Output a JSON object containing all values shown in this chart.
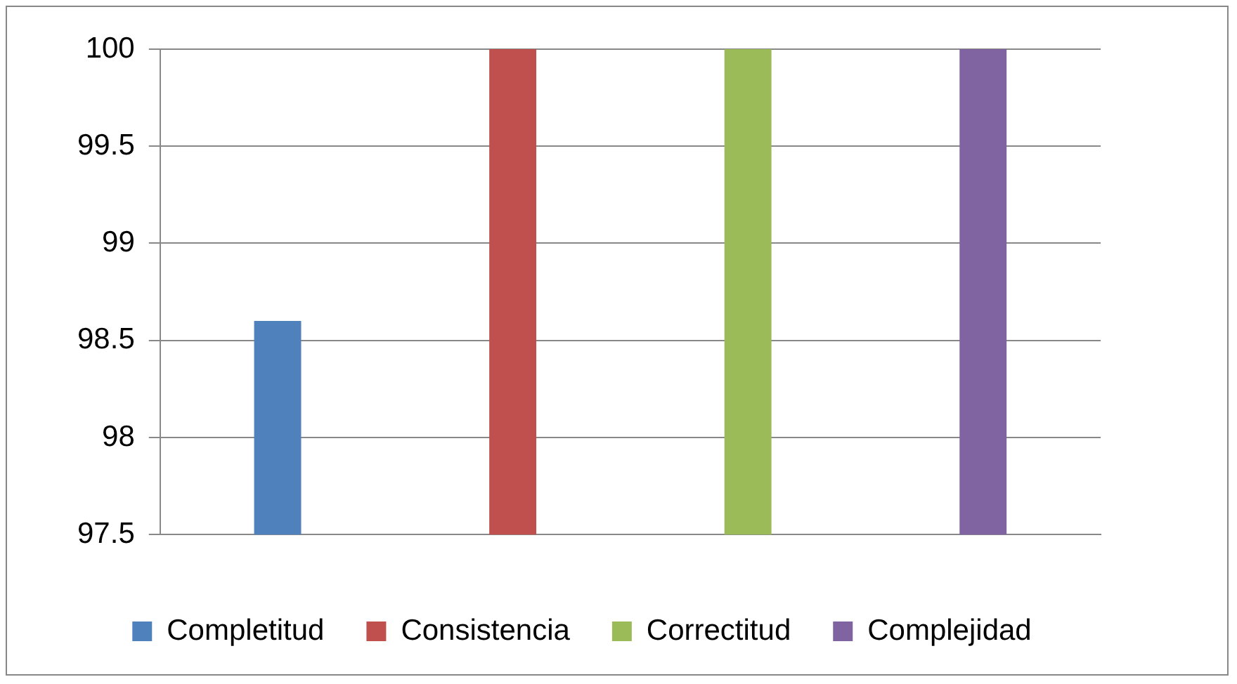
{
  "chart_data": {
    "type": "bar",
    "categories": [
      null
    ],
    "series": [
      {
        "name": "Completitud",
        "color": "#4f81bd",
        "values": [
          98.6
        ]
      },
      {
        "name": "Consistencia",
        "color": "#c0504d",
        "values": [
          100
        ]
      },
      {
        "name": "Correctitud",
        "color": "#9bbb59",
        "values": [
          100
        ]
      },
      {
        "name": "Complejidad",
        "color": "#8064a2",
        "values": [
          100
        ]
      }
    ],
    "ylim": [
      97.5,
      100
    ],
    "yticks": [
      97.5,
      98,
      98.5,
      99,
      99.5,
      100
    ],
    "grid": "y",
    "legend": "bottom"
  }
}
